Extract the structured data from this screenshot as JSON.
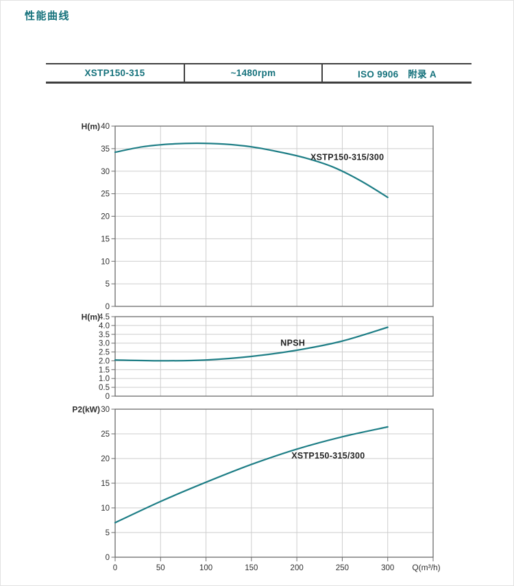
{
  "page": {
    "title": "性能曲线"
  },
  "spec_table": {
    "cells": [
      "XSTP150-315",
      "~1480rpm",
      "ISO 9906　附录 A"
    ]
  },
  "colors": {
    "accent_teal": "#14717b",
    "curve": "#1e7e86",
    "grid": "#cdcdcd",
    "axis": "#6a6a6a",
    "tick_text": "#2f2f2f",
    "label_text": "#242424",
    "table_border": "#3e3e3e"
  },
  "x_axis": {
    "grid_step": 50,
    "tick_values": [
      0,
      50,
      100,
      150,
      200,
      250,
      300
    ],
    "tick_labels": [
      "0",
      "50",
      "100",
      "150",
      "200",
      "250",
      "300"
    ],
    "unit_label": "Q(m³/h)"
  },
  "chart_data": [
    {
      "id": "head",
      "type": "line",
      "ylabel": "H(m)",
      "ylim": [
        0,
        40
      ],
      "xlim": [
        0,
        350
      ],
      "grid": true,
      "ytick_values": [
        0,
        5,
        10,
        15,
        20,
        25,
        30,
        35,
        40
      ],
      "ytick_labels": [
        "0",
        "5",
        "10",
        "15",
        "20",
        "25",
        "30",
        "35",
        "40"
      ],
      "series": [
        {
          "name": "XSTP150-315/300",
          "label": "XSTP150-315/300",
          "label_at": [
            215,
            32.5
          ],
          "points": [
            [
              0,
              34.2
            ],
            [
              30,
              35.4
            ],
            [
              60,
              36.0
            ],
            [
              90,
              36.2
            ],
            [
              120,
              36.0
            ],
            [
              150,
              35.4
            ],
            [
              180,
              34.3
            ],
            [
              210,
              32.9
            ],
            [
              240,
              30.9
            ],
            [
              270,
              27.9
            ],
            [
              300,
              24.2
            ]
          ]
        }
      ]
    },
    {
      "id": "npsh",
      "type": "line",
      "ylabel": "H(m)",
      "ylim": [
        0,
        4.5
      ],
      "xlim": [
        0,
        350
      ],
      "grid": true,
      "ytick_values": [
        0,
        0.5,
        1.0,
        1.5,
        2.0,
        2.5,
        3.0,
        3.5,
        4.0,
        4.5
      ],
      "ytick_labels": [
        "0",
        "0.5",
        "1.0",
        "1.5",
        "2.0",
        "2.5",
        "3.0",
        "3.5",
        "4.0",
        "4.5"
      ],
      "series": [
        {
          "name": "NPSH",
          "label": "NPSH",
          "label_at": [
            182,
            2.85
          ],
          "points": [
            [
              0,
              2.05
            ],
            [
              50,
              2.0
            ],
            [
              100,
              2.05
            ],
            [
              150,
              2.25
            ],
            [
              200,
              2.6
            ],
            [
              250,
              3.12
            ],
            [
              300,
              3.9
            ]
          ]
        }
      ]
    },
    {
      "id": "power",
      "type": "line",
      "ylabel": "P2(kW)",
      "ylim": [
        0,
        30
      ],
      "xlim": [
        0,
        350
      ],
      "grid": true,
      "show_x_axis": true,
      "ytick_values": [
        0,
        5,
        10,
        15,
        20,
        25,
        30
      ],
      "ytick_labels": [
        "0",
        "5",
        "10",
        "15",
        "20",
        "25",
        "30"
      ],
      "series": [
        {
          "name": "XSTP150-315/300",
          "label": "XSTP150-315/300",
          "label_at": [
            194,
            20.0
          ],
          "points": [
            [
              0,
              7.0
            ],
            [
              50,
              11.3
            ],
            [
              100,
              15.2
            ],
            [
              150,
              18.8
            ],
            [
              200,
              21.9
            ],
            [
              250,
              24.4
            ],
            [
              300,
              26.4
            ]
          ]
        }
      ]
    }
  ]
}
